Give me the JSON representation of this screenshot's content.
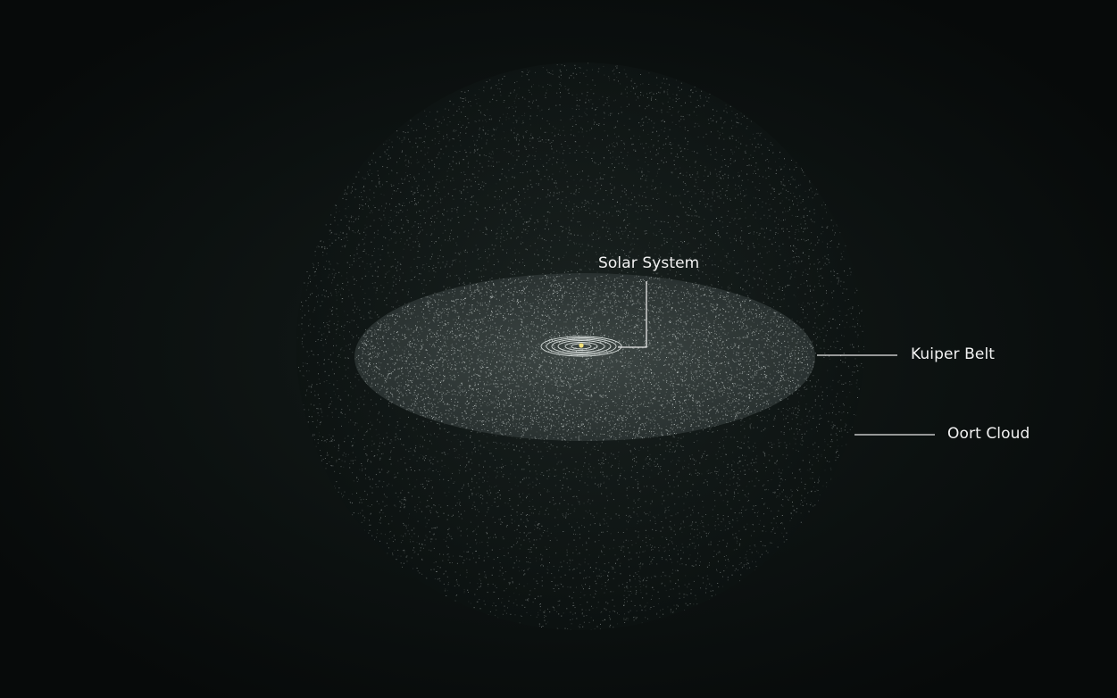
{
  "labels": {
    "solar_system": "Solar System",
    "kuiper_belt": "Kuiper Belt",
    "oort_cloud": "Oort Cloud"
  },
  "colors": {
    "background": "#0a0f0e",
    "particles": "#dfe6e4",
    "sun": "#f4e27a",
    "leader_lines": "#e8e8e8"
  }
}
